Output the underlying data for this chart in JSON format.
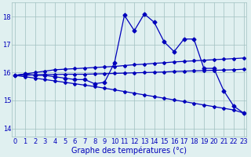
{
  "background_color": "#e0f0f0",
  "grid_color": "#a0c0c0",
  "line_color": "#0000bb",
  "marker_main": "D",
  "markersize_main": 2.5,
  "markersize_trend": 2.0,
  "linewidth": 0.9,
  "xlabel": "Graphe des températures (°c)",
  "xlabel_fontsize": 7,
  "yticks": [
    14,
    15,
    16,
    17,
    18
  ],
  "xticks": [
    0,
    1,
    2,
    3,
    4,
    5,
    6,
    7,
    8,
    9,
    10,
    11,
    12,
    13,
    14,
    15,
    16,
    17,
    18,
    19,
    20,
    21,
    22,
    23
  ],
  "xlim": [
    -0.3,
    23.3
  ],
  "ylim": [
    13.7,
    18.5
  ],
  "tick_fontsize": 6,
  "series_main": [
    15.9,
    15.95,
    15.9,
    15.9,
    15.85,
    15.8,
    15.75,
    15.75,
    15.6,
    15.65,
    16.35,
    18.05,
    17.5,
    18.1,
    17.8,
    17.1,
    16.75,
    17.2,
    17.2,
    16.15,
    16.15,
    15.35,
    14.8,
    14.55
  ],
  "series_trend_high": [
    15.9,
    15.95,
    16.0,
    16.05,
    16.1,
    16.12,
    16.14,
    16.16,
    16.18,
    16.2,
    16.22,
    16.25,
    16.28,
    16.3,
    16.33,
    16.35,
    16.38,
    16.4,
    16.42,
    16.44,
    16.46,
    16.48,
    16.5,
    16.52
  ],
  "series_trend_mid": [
    15.9,
    15.9,
    15.92,
    15.93,
    15.93,
    15.94,
    15.94,
    15.94,
    15.95,
    15.96,
    15.97,
    15.98,
    15.99,
    16.0,
    16.01,
    16.02,
    16.04,
    16.05,
    16.06,
    16.07,
    16.08,
    16.09,
    16.1,
    16.12
  ],
  "series_trend_low": [
    15.9,
    15.85,
    15.8,
    15.75,
    15.7,
    15.65,
    15.6,
    15.55,
    15.5,
    15.44,
    15.38,
    15.32,
    15.26,
    15.2,
    15.14,
    15.08,
    15.02,
    14.96,
    14.9,
    14.84,
    14.78,
    14.72,
    14.66,
    14.55
  ]
}
